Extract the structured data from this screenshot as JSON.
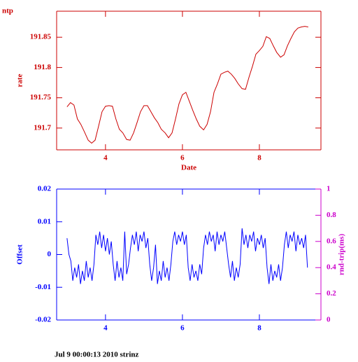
{
  "footer": "Jul  9 00:00:13 2010 strinz",
  "chart_data": [
    {
      "type": "line",
      "title": "ntp",
      "ylabel": "rate",
      "xlabel": "Date",
      "color": "#cc0000",
      "xlim": [
        2.73,
        9.6
      ],
      "xticks": [
        4,
        6,
        8
      ],
      "ylim": [
        191.664,
        191.893
      ],
      "yticks": [
        191.7,
        191.75,
        191.8,
        191.85
      ],
      "x": [
        3.0,
        3.09,
        3.18,
        3.27,
        3.36,
        3.45,
        3.55,
        3.64,
        3.73,
        3.82,
        3.91,
        4.0,
        4.09,
        4.18,
        4.27,
        4.36,
        4.45,
        4.55,
        4.64,
        4.73,
        4.82,
        4.91,
        5.0,
        5.09,
        5.18,
        5.27,
        5.36,
        5.45,
        5.55,
        5.64,
        5.73,
        5.82,
        5.91,
        6.0,
        6.09,
        6.18,
        6.27,
        6.36,
        6.45,
        6.55,
        6.64,
        6.73,
        6.82,
        6.91,
        7.0,
        7.09,
        7.18,
        7.27,
        7.36,
        7.45,
        7.55,
        7.64,
        7.73,
        7.82,
        7.91,
        8.0,
        8.09,
        8.18,
        8.27,
        8.36,
        8.45,
        8.55,
        8.64,
        8.73,
        8.82,
        8.91,
        9.0,
        9.09,
        9.18,
        9.27
      ],
      "values": [
        191.735,
        191.742,
        191.738,
        191.715,
        191.706,
        191.694,
        191.68,
        191.675,
        191.68,
        191.703,
        191.727,
        191.736,
        191.737,
        191.736,
        191.715,
        191.698,
        191.692,
        191.681,
        191.68,
        191.692,
        191.709,
        191.727,
        191.737,
        191.737,
        191.727,
        191.717,
        191.709,
        191.698,
        191.692,
        191.684,
        191.692,
        191.715,
        191.74,
        191.755,
        191.759,
        191.744,
        191.729,
        191.715,
        191.703,
        191.697,
        191.706,
        191.727,
        191.759,
        191.773,
        191.789,
        191.792,
        191.794,
        191.789,
        191.782,
        191.773,
        191.765,
        191.764,
        191.784,
        191.802,
        191.822,
        191.828,
        191.835,
        191.851,
        191.848,
        191.836,
        191.825,
        191.817,
        191.821,
        191.836,
        191.848,
        191.859,
        191.865,
        191.867,
        191.868,
        191.867
      ]
    },
    {
      "type": "line",
      "ylabel": "Offset",
      "color": "#0000ff",
      "y2label": "rnd-trip(ms)",
      "y2color": "#cc00cc",
      "xlim": [
        2.73,
        9.6
      ],
      "xticks": [
        4,
        6,
        8
      ],
      "ylim": [
        -0.02,
        0.02
      ],
      "yticks": [
        -0.02,
        -0.01,
        0,
        0.01,
        0.02
      ],
      "y2lim": [
        0,
        1
      ],
      "y2ticks": [
        0,
        0.2,
        0.4,
        0.6,
        0.8,
        1
      ],
      "x": [
        3.0,
        3.05,
        3.1,
        3.15,
        3.2,
        3.25,
        3.3,
        3.35,
        3.4,
        3.45,
        3.5,
        3.55,
        3.6,
        3.65,
        3.7,
        3.75,
        3.8,
        3.85,
        3.9,
        3.95,
        4.0,
        4.05,
        4.1,
        4.15,
        4.2,
        4.25,
        4.3,
        4.35,
        4.4,
        4.45,
        4.5,
        4.55,
        4.6,
        4.65,
        4.7,
        4.75,
        4.8,
        4.85,
        4.9,
        4.95,
        5.0,
        5.05,
        5.1,
        5.15,
        5.2,
        5.25,
        5.3,
        5.35,
        5.4,
        5.45,
        5.5,
        5.55,
        5.6,
        5.65,
        5.7,
        5.75,
        5.8,
        5.85,
        5.9,
        5.95,
        6.0,
        6.05,
        6.1,
        6.15,
        6.2,
        6.25,
        6.3,
        6.35,
        6.4,
        6.45,
        6.5,
        6.55,
        6.6,
        6.65,
        6.7,
        6.75,
        6.8,
        6.85,
        6.9,
        6.95,
        7.0,
        7.05,
        7.1,
        7.15,
        7.2,
        7.25,
        7.3,
        7.35,
        7.4,
        7.45,
        7.5,
        7.55,
        7.6,
        7.65,
        7.7,
        7.75,
        7.8,
        7.85,
        7.9,
        7.95,
        8.0,
        8.05,
        8.1,
        8.15,
        8.2,
        8.25,
        8.3,
        8.35,
        8.4,
        8.45,
        8.5,
        8.55,
        8.6,
        8.65,
        8.7,
        8.75,
        8.8,
        8.85,
        8.9,
        8.95,
        9.0,
        9.05,
        9.1,
        9.15,
        9.2,
        9.25
      ],
      "values": [
        0.005,
        0,
        -0.002,
        -0.008,
        -0.004,
        -0.007,
        -0.003,
        -0.009,
        -0.005,
        -0.008,
        -0.002,
        -0.007,
        -0.004,
        -0.008,
        -0.003,
        0.006,
        0.003,
        0.007,
        0.002,
        0.006,
        0.001,
        0.005,
        0,
        0.004,
        -0.003,
        -0.008,
        -0.002,
        -0.007,
        -0.004,
        -0.008,
        0.007,
        -0.006,
        -0.003,
        0.002,
        0.006,
        0.003,
        0.007,
        0.001,
        0.006,
        0.004,
        0.007,
        0.002,
        0.005,
        -0.003,
        -0.008,
        -0.004,
        0.003,
        -0.009,
        -0.005,
        -0.008,
        -0.002,
        -0.007,
        -0.004,
        -0.008,
        -0.003,
        0.004,
        0.007,
        0.003,
        0.006,
        0.004,
        0.007,
        0.003,
        0.006,
        -0.004,
        -0.008,
        -0.003,
        -0.007,
        -0.005,
        -0.008,
        -0.003,
        -0.006,
        0.002,
        0.006,
        0.003,
        0.007,
        0.004,
        0.006,
        0.001,
        0.007,
        0.003,
        0.006,
        0.004,
        0.007,
        0.002,
        -0.003,
        -0.007,
        -0.002,
        -0.008,
        -0.004,
        -0.007,
        -0.003,
        0.008,
        0.003,
        0.006,
        0.002,
        0.006,
        0.004,
        0.007,
        0.001,
        0.005,
        0.003,
        0.006,
        0.002,
        0.005,
        -0.004,
        -0.009,
        -0.003,
        -0.008,
        -0.005,
        -0.007,
        -0.003,
        -0.008,
        -0.004,
        0.003,
        0.007,
        0.002,
        0.006,
        0.004,
        0.007,
        0.001,
        0.006,
        0.003,
        0.005,
        0.002,
        0.006,
        -0.004
      ]
    }
  ]
}
